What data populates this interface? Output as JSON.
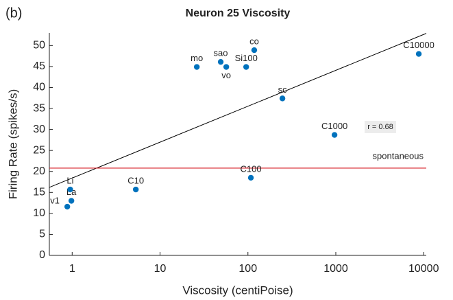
{
  "chart_data": {
    "type": "scatter",
    "panel_label": "(b)",
    "title": "Neuron 25 Viscosity",
    "x_label": "Viscosity (centiPoise)",
    "y_label": "Firing Rate (spikes/s)",
    "x_scale": "log",
    "point_labels": [
      "v1",
      "La",
      "Li",
      "C10",
      "mo",
      "sao",
      "vo",
      "Si100",
      "co",
      "sc",
      "C1000",
      "C100",
      "C10000"
    ],
    "x": [
      0.88,
      0.98,
      0.95,
      5.3,
      26.2,
      49,
      56.7,
      95.5,
      118,
      247,
      967,
      108,
      8790
    ],
    "values": [
      11.6,
      13,
      15.7,
      15.7,
      44.9,
      46.1,
      44.9,
      44.9,
      48.9,
      37.4,
      28.7,
      18.5,
      48.0
    ],
    "color": "#0072bd",
    "fit_line": {
      "x": [
        0.55,
        10700
      ],
      "y": [
        16.2,
        52.9
      ],
      "color": "#000000"
    },
    "reference_line": {
      "label": "spontaneous",
      "y": 20.8,
      "color": "#d9262e"
    },
    "annotation": "r = 0.68",
    "xlim": [
      0.55,
      10700
    ],
    "ylim": [
      0,
      53
    ],
    "xticks": [
      1,
      10,
      100,
      1000,
      10000
    ],
    "yticks": [
      0,
      5,
      10,
      15,
      20,
      25,
      30,
      35,
      40,
      45,
      50
    ]
  }
}
